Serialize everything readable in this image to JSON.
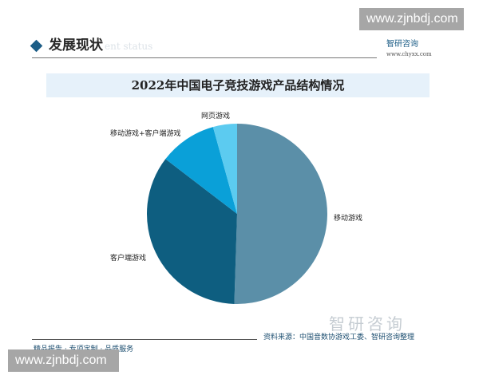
{
  "watermark": "www.zjnbdj.com",
  "section": {
    "title": "发展现状",
    "ghost_text": "ent status"
  },
  "brand": {
    "name": "智研咨询",
    "url": "www.chyxx.com"
  },
  "chart_data": {
    "type": "pie",
    "title": "2022年中国电子竞技游戏产品结构情况",
    "start": "12 o'clock, clockwise",
    "unit": "%",
    "slices": [
      {
        "label": "移动游戏",
        "value": 50.5,
        "color": "#5b8fa8"
      },
      {
        "label": "客户端游戏",
        "value": 34.9,
        "color": "#0e5e80"
      },
      {
        "label": "移动游戏+客户端游戏",
        "value": 10.3,
        "color": "#0aa0d8"
      },
      {
        "label": "网页游戏",
        "value": 4.3,
        "color": "#5ccbf0"
      }
    ]
  },
  "footer": {
    "source": "资料来源：中国音数协游戏工委、智研咨询整理",
    "tagline": "精品报告 · 专项定制 · 品质服务"
  }
}
